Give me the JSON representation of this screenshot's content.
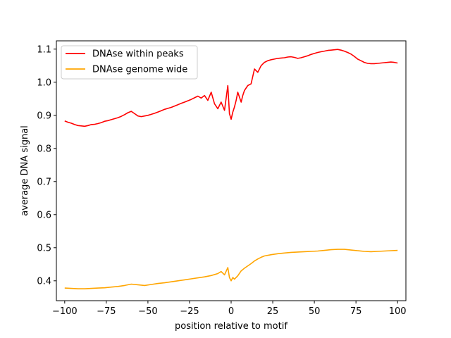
{
  "chart_data": {
    "type": "line",
    "title": "",
    "xlabel": "position relative to motif",
    "ylabel": "average DNA signal",
    "xlim": [
      -105,
      105
    ],
    "ylim": [
      0.34,
      1.125
    ],
    "xticks": [
      -100,
      -75,
      -50,
      -25,
      0,
      25,
      50,
      75,
      100
    ],
    "xtick_labels": [
      "−100",
      "−75",
      "−50",
      "−25",
      "0",
      "25",
      "50",
      "75",
      "100"
    ],
    "yticks": [
      0.4,
      0.5,
      0.6,
      0.7,
      0.8,
      0.9,
      1.0,
      1.1
    ],
    "ytick_labels": [
      "0.4",
      "0.5",
      "0.6",
      "0.7",
      "0.8",
      "0.9",
      "1.0",
      "1.1"
    ],
    "grid": false,
    "legend_position": "top-left",
    "series": [
      {
        "name": "DNAse within peaks",
        "color": "#ff0000",
        "x": [
          -100,
          -98,
          -96,
          -94,
          -92,
          -90,
          -88,
          -86,
          -84,
          -82,
          -80,
          -78,
          -76,
          -74,
          -72,
          -70,
          -68,
          -66,
          -64,
          -62,
          -60,
          -58,
          -56,
          -54,
          -52,
          -50,
          -48,
          -46,
          -44,
          -42,
          -40,
          -38,
          -36,
          -34,
          -32,
          -30,
          -28,
          -26,
          -24,
          -22,
          -20,
          -18,
          -16,
          -14,
          -12,
          -10,
          -8,
          -6,
          -4,
          -2,
          -1,
          0,
          1,
          2,
          3,
          4,
          5,
          6,
          7,
          8,
          10,
          12,
          14,
          16,
          18,
          20,
          22,
          24,
          26,
          28,
          30,
          32,
          34,
          36,
          38,
          40,
          42,
          44,
          46,
          48,
          50,
          52,
          54,
          56,
          58,
          60,
          62,
          64,
          66,
          68,
          70,
          72,
          74,
          76,
          78,
          80,
          82,
          84,
          86,
          88,
          90,
          92,
          94,
          96,
          98,
          100
        ],
        "values": [
          0.883,
          0.879,
          0.876,
          0.872,
          0.869,
          0.868,
          0.867,
          0.869,
          0.872,
          0.873,
          0.875,
          0.878,
          0.882,
          0.884,
          0.887,
          0.89,
          0.893,
          0.897,
          0.902,
          0.908,
          0.912,
          0.905,
          0.898,
          0.896,
          0.898,
          0.9,
          0.903,
          0.906,
          0.91,
          0.914,
          0.918,
          0.921,
          0.924,
          0.928,
          0.932,
          0.936,
          0.94,
          0.944,
          0.948,
          0.953,
          0.958,
          0.952,
          0.96,
          0.945,
          0.97,
          0.935,
          0.92,
          0.94,
          0.915,
          0.99,
          0.905,
          0.888,
          0.91,
          0.925,
          0.945,
          0.97,
          0.955,
          0.94,
          0.96,
          0.975,
          0.99,
          0.995,
          1.04,
          1.03,
          1.05,
          1.06,
          1.065,
          1.068,
          1.07,
          1.072,
          1.073,
          1.074,
          1.076,
          1.077,
          1.075,
          1.072,
          1.074,
          1.077,
          1.08,
          1.084,
          1.087,
          1.09,
          1.092,
          1.094,
          1.096,
          1.097,
          1.098,
          1.099,
          1.097,
          1.094,
          1.09,
          1.085,
          1.078,
          1.07,
          1.065,
          1.06,
          1.057,
          1.056,
          1.056,
          1.057,
          1.058,
          1.059,
          1.06,
          1.061,
          1.06,
          1.058
        ]
      },
      {
        "name": "DNAse genome wide",
        "color": "#ffa500",
        "x": [
          -100,
          -96,
          -92,
          -88,
          -84,
          -80,
          -76,
          -72,
          -68,
          -64,
          -60,
          -56,
          -52,
          -48,
          -44,
          -40,
          -36,
          -32,
          -28,
          -24,
          -20,
          -16,
          -12,
          -8,
          -6,
          -4,
          -2,
          -1,
          0,
          1,
          2,
          4,
          6,
          8,
          10,
          12,
          14,
          16,
          18,
          20,
          24,
          28,
          32,
          36,
          40,
          44,
          48,
          52,
          56,
          60,
          64,
          68,
          72,
          76,
          80,
          84,
          88,
          92,
          96,
          100
        ],
        "values": [
          0.378,
          0.377,
          0.376,
          0.376,
          0.377,
          0.378,
          0.379,
          0.381,
          0.383,
          0.386,
          0.39,
          0.388,
          0.386,
          0.389,
          0.392,
          0.394,
          0.397,
          0.4,
          0.403,
          0.406,
          0.409,
          0.412,
          0.416,
          0.422,
          0.428,
          0.418,
          0.44,
          0.41,
          0.4,
          0.41,
          0.405,
          0.415,
          0.43,
          0.438,
          0.445,
          0.452,
          0.46,
          0.466,
          0.471,
          0.475,
          0.479,
          0.482,
          0.484,
          0.486,
          0.487,
          0.488,
          0.489,
          0.49,
          0.492,
          0.494,
          0.495,
          0.495,
          0.493,
          0.491,
          0.489,
          0.488,
          0.489,
          0.49,
          0.491,
          0.492
        ]
      }
    ]
  }
}
